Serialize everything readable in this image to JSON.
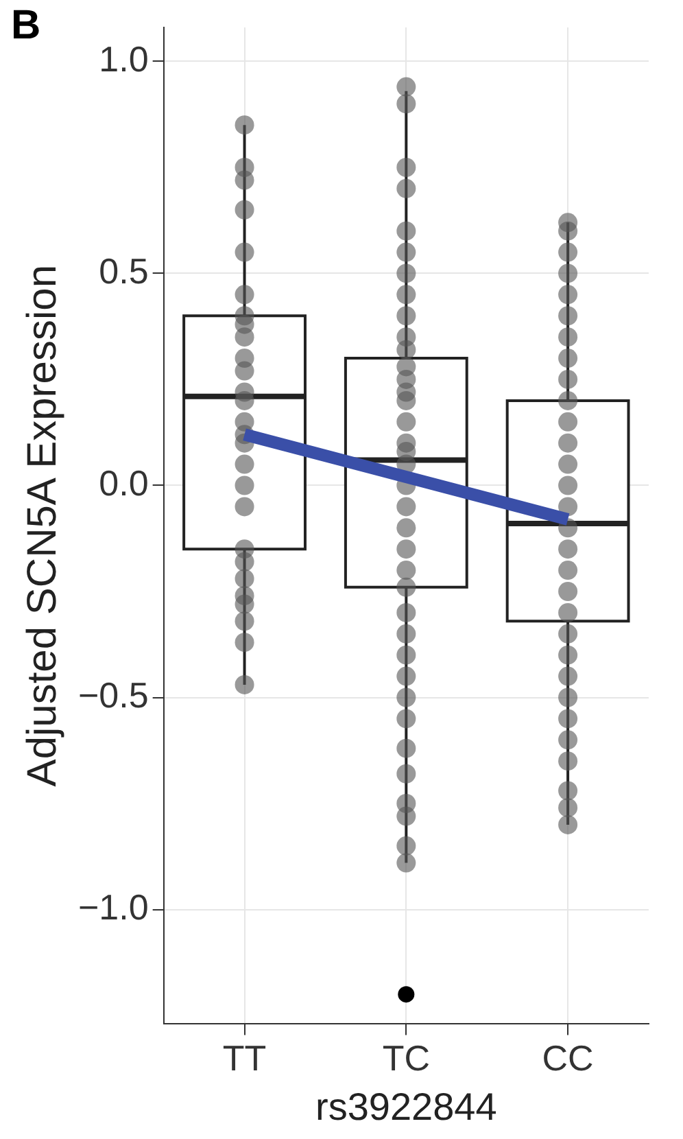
{
  "chart_data": {
    "type": "box",
    "annotations": [
      "B"
    ],
    "xlabel": "rs3922844",
    "ylabel": "Adjusted SCN5A Expression",
    "categories": [
      "TT",
      "TC",
      "CC"
    ],
    "boxes": [
      {
        "low": -0.47,
        "q1": -0.15,
        "median": 0.21,
        "q3": 0.4,
        "high": 0.85
      },
      {
        "low": -0.89,
        "q1": -0.24,
        "median": 0.06,
        "q3": 0.3,
        "high": 0.93,
        "outliers": [
          -1.2
        ]
      },
      {
        "low": -0.8,
        "q1": -0.32,
        "median": -0.09,
        "q3": 0.2,
        "high": 0.62
      }
    ],
    "series": [
      {
        "type": "scatter",
        "marker": "circle",
        "color": "#555555",
        "x": [
          "TT",
          "TT",
          "TT",
          "TT",
          "TT",
          "TT",
          "TT",
          "TT",
          "TT",
          "TT",
          "TT",
          "TT",
          "TT",
          "TT",
          "TT",
          "TT",
          "TT",
          "TT",
          "TT",
          "TT",
          "TT",
          "TT",
          "TT",
          "TT",
          "TT",
          "TT",
          "TT",
          "TC",
          "TC",
          "TC",
          "TC",
          "TC",
          "TC",
          "TC",
          "TC",
          "TC",
          "TC",
          "TC",
          "TC",
          "TC",
          "TC",
          "TC",
          "TC",
          "TC",
          "TC",
          "TC",
          "TC",
          "TC",
          "TC",
          "TC",
          "TC",
          "TC",
          "TC",
          "TC",
          "TC",
          "TC",
          "TC",
          "TC",
          "TC",
          "TC",
          "TC",
          "TC",
          "TC",
          "TC",
          "TC",
          "CC",
          "CC",
          "CC",
          "CC",
          "CC",
          "CC",
          "CC",
          "CC",
          "CC",
          "CC",
          "CC",
          "CC",
          "CC",
          "CC",
          "CC",
          "CC",
          "CC",
          "CC",
          "CC",
          "CC",
          "CC",
          "CC",
          "CC",
          "CC",
          "CC",
          "CC",
          "CC",
          "CC",
          "CC",
          "CC"
        ],
        "values": [
          0.85,
          0.75,
          0.72,
          0.65,
          0.55,
          0.45,
          0.4,
          0.38,
          0.35,
          0.3,
          0.27,
          0.22,
          0.2,
          0.15,
          0.12,
          0.1,
          0.05,
          0.0,
          -0.05,
          -0.15,
          -0.18,
          -0.22,
          -0.26,
          -0.28,
          -0.32,
          -0.37,
          -0.47,
          0.94,
          0.9,
          0.75,
          0.7,
          0.6,
          0.55,
          0.5,
          0.45,
          0.4,
          0.35,
          0.32,
          0.28,
          0.25,
          0.22,
          0.2,
          0.15,
          0.1,
          0.08,
          0.05,
          null,
          0.0,
          -0.05,
          -0.1,
          -0.15,
          -0.2,
          -0.24,
          -0.3,
          -0.35,
          -0.4,
          -0.45,
          -0.5,
          -0.55,
          -0.62,
          -0.68,
          -0.75,
          -0.78,
          -0.85,
          -0.89,
          0.62,
          0.6,
          0.55,
          0.5,
          0.45,
          0.4,
          0.35,
          0.3,
          0.25,
          0.2,
          0.15,
          0.1,
          0.05,
          0.0,
          -0.05,
          -0.1,
          -0.15,
          -0.2,
          -0.25,
          -0.3,
          -0.35,
          -0.4,
          -0.45,
          -0.5,
          -0.55,
          -0.6,
          -0.65,
          -0.72,
          -0.76,
          -0.8
        ]
      },
      {
        "type": "line",
        "marker": "none",
        "color": "#3a4fa8",
        "x": [
          "TT",
          "CC"
        ],
        "values": [
          0.12,
          -0.08
        ]
      }
    ],
    "ylim": [
      -1.27,
      1.08
    ],
    "yticks": [
      {
        "value": -1,
        "label": "−1.0"
      },
      {
        "value": -0.5,
        "label": "−0.5"
      },
      {
        "value": 0,
        "label": "0.0"
      },
      {
        "value": 0.5,
        "label": "0.5"
      },
      {
        "value": 1,
        "label": "1.0"
      }
    ],
    "grid": true
  }
}
